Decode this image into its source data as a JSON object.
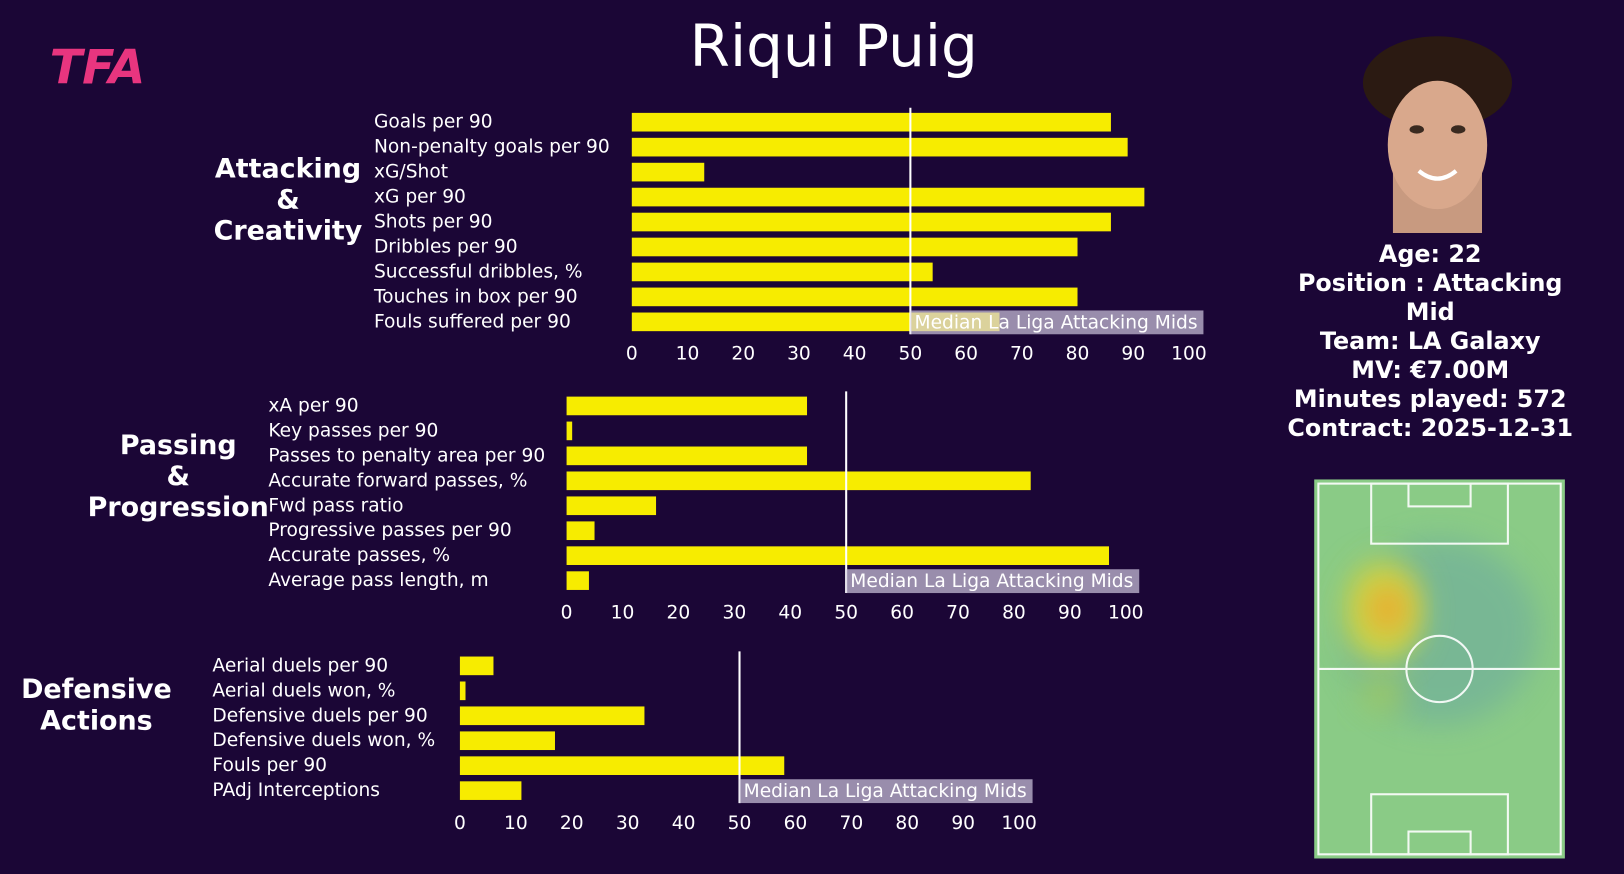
{
  "title": "Riqui Puig",
  "logo": "TFA",
  "player_info": [
    "Age: 22",
    "Position : Attacking Mid",
    "Team: LA Galaxy",
    "MV: €7.00M",
    "Minutes played: 572",
    "Contract: 2025-12-31"
  ],
  "chart_data": [
    {
      "type": "barh",
      "group_label": [
        "Attacking",
        "&",
        "Creativity"
      ],
      "color": "#f7ec00",
      "categories": [
        "Goals per 90",
        "Non-penalty goals per 90",
        "xG/Shot",
        "xG per 90",
        "Shots per 90",
        "Dribbles per 90",
        "Successful dribbles, %",
        "Touches in box per 90",
        "Fouls suffered per 90"
      ],
      "values": [
        86,
        89,
        13,
        92,
        86,
        80,
        54,
        80,
        66
      ],
      "xlim": [
        0,
        103
      ],
      "xticks": [
        0,
        10,
        20,
        30,
        40,
        50,
        60,
        70,
        80,
        90,
        100
      ],
      "median": 50,
      "median_label": "Median La Liga Attacking Mids"
    },
    {
      "type": "barh",
      "group_label": [
        "Passing",
        "&",
        "Progression"
      ],
      "color": "#f7ec00",
      "categories": [
        "xA per 90",
        "Key passes per 90",
        "Passes to penalty area per 90",
        "Accurate forward passes, %",
        "Fwd pass ratio",
        "Progressive passes per 90",
        "Accurate passes, %",
        "Average pass length, m"
      ],
      "values": [
        43,
        1,
        43,
        83,
        16,
        5,
        97,
        4
      ],
      "xlim": [
        0,
        103
      ],
      "xticks": [
        0,
        10,
        20,
        30,
        40,
        50,
        60,
        70,
        80,
        90,
        100
      ],
      "median": 50,
      "median_label": "Median La Liga Attacking Mids"
    },
    {
      "type": "barh",
      "group_label": [
        "Defensive",
        "Actions"
      ],
      "color": "#f7ec00",
      "categories": [
        "Aerial duels per 90",
        "Aerial duels won, %",
        "Defensive duels per 90",
        "Defensive duels won, %",
        "Fouls per 90",
        "PAdj Interceptions"
      ],
      "values": [
        6,
        1,
        33,
        17,
        58,
        11
      ],
      "xlim": [
        0,
        103
      ],
      "xticks": [
        0,
        10,
        20,
        30,
        40,
        50,
        60,
        70,
        80,
        90,
        100
      ],
      "median": 50,
      "median_label": "Median La Liga Attacking Mids"
    }
  ]
}
